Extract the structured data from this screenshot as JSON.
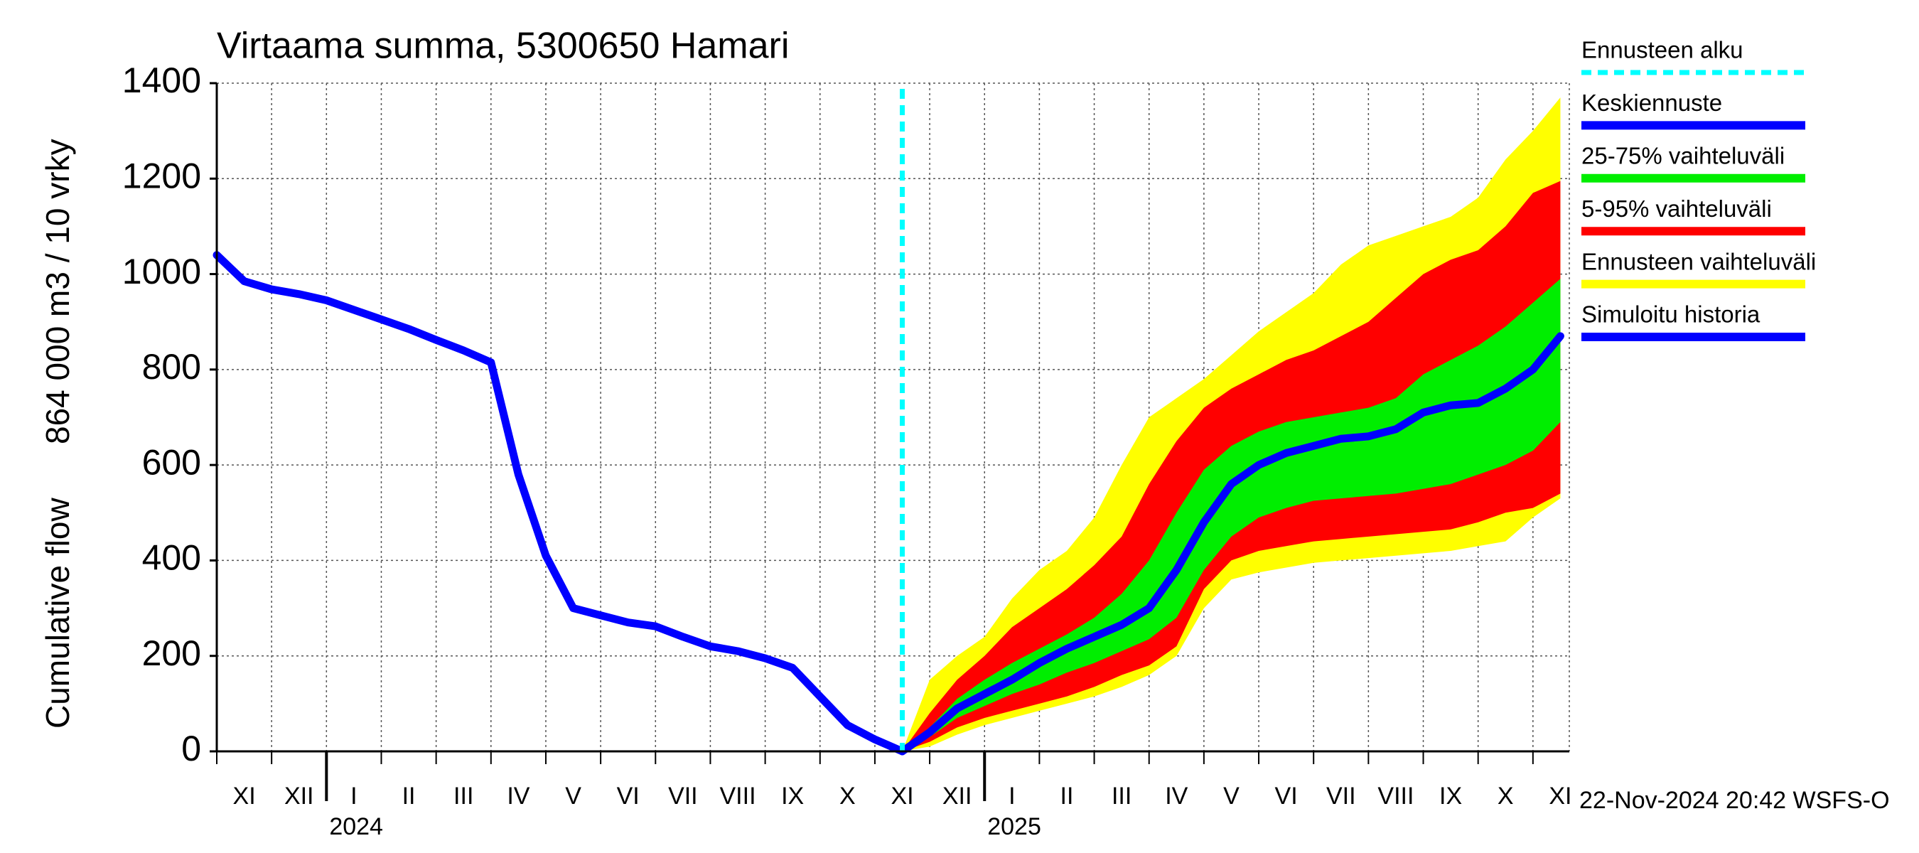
{
  "chart_data": {
    "type": "forecast",
    "title": "Virtaama summa, 5300650 Hamari",
    "ylabel": [
      "Cumulative flow",
      "864 000 m3 / 10 vrky"
    ],
    "footer": "22-Nov-2024 20:42 WSFS-O",
    "years": [
      "2024",
      "2025"
    ],
    "categories": [
      null,
      "XI",
      null,
      "XII",
      null,
      "I",
      null,
      "II",
      null,
      "III",
      null,
      "IV",
      null,
      "V",
      null,
      "VI",
      null,
      "VII",
      null,
      "VIII",
      null,
      "IX",
      null,
      "X",
      null,
      "XI",
      null,
      "XII",
      null,
      "I",
      null,
      "II",
      null,
      "III",
      null,
      "IV",
      null,
      "V",
      null,
      "VI",
      null,
      "VII",
      null,
      "VIII",
      null,
      "IX",
      null,
      "X",
      null,
      "XI"
    ],
    "ylim": [
      0,
      1400
    ],
    "yticks": [
      0,
      200,
      400,
      600,
      800,
      1000,
      1200,
      1400
    ],
    "grid": true,
    "forecast_start": {
      "name": "Ennusteen alku",
      "color": "#00ffff"
    },
    "series": [
      {
        "name": "Keskiennuste",
        "color": "#0000ff",
        "values": [
          null,
          null,
          null,
          null,
          null,
          null,
          null,
          null,
          null,
          null,
          null,
          null,
          null,
          null,
          null,
          null,
          null,
          null,
          null,
          null,
          null,
          null,
          null,
          null,
          null,
          0,
          40,
          90,
          120,
          150,
          185,
          215,
          240,
          265,
          300,
          380,
          480,
          560,
          600,
          625,
          640,
          655,
          660,
          675,
          710,
          725,
          730,
          760,
          800,
          870
        ]
      },
      {
        "name": "25-75% vaihteluväli",
        "color": "#00ee00",
        "low": [
          null,
          null,
          null,
          null,
          null,
          null,
          null,
          null,
          null,
          null,
          null,
          null,
          null,
          null,
          null,
          null,
          null,
          null,
          null,
          null,
          null,
          null,
          null,
          null,
          null,
          0,
          30,
          70,
          95,
          120,
          140,
          165,
          185,
          210,
          235,
          280,
          380,
          450,
          490,
          510,
          525,
          530,
          535,
          540,
          550,
          560,
          580,
          600,
          630,
          690
        ],
        "high": [
          null,
          null,
          null,
          null,
          null,
          null,
          null,
          null,
          null,
          null,
          null,
          null,
          null,
          null,
          null,
          null,
          null,
          null,
          null,
          null,
          null,
          null,
          null,
          null,
          null,
          0,
          50,
          110,
          150,
          185,
          215,
          245,
          280,
          330,
          400,
          500,
          590,
          640,
          670,
          690,
          700,
          710,
          720,
          740,
          790,
          820,
          850,
          890,
          940,
          990
        ]
      },
      {
        "name": "5-95% vaihteluväli",
        "color": "#ff0000",
        "low": [
          null,
          null,
          null,
          null,
          null,
          null,
          null,
          null,
          null,
          null,
          null,
          null,
          null,
          null,
          null,
          null,
          null,
          null,
          null,
          null,
          null,
          null,
          null,
          null,
          null,
          0,
          20,
          50,
          70,
          85,
          100,
          115,
          135,
          160,
          180,
          220,
          340,
          400,
          420,
          430,
          440,
          445,
          450,
          455,
          460,
          465,
          480,
          500,
          510,
          540
        ],
        "high": [
          null,
          null,
          null,
          null,
          null,
          null,
          null,
          null,
          null,
          null,
          null,
          null,
          null,
          null,
          null,
          null,
          null,
          null,
          null,
          null,
          null,
          null,
          null,
          null,
          null,
          0,
          80,
          150,
          200,
          260,
          300,
          340,
          390,
          450,
          560,
          650,
          720,
          760,
          790,
          820,
          840,
          870,
          900,
          950,
          1000,
          1030,
          1050,
          1100,
          1170,
          1195
        ]
      },
      {
        "name": "Ennusteen vaihteluväli",
        "color": "#ffff00",
        "low": [
          null,
          null,
          null,
          null,
          null,
          null,
          null,
          null,
          null,
          null,
          null,
          null,
          null,
          null,
          null,
          null,
          null,
          null,
          null,
          null,
          null,
          null,
          null,
          null,
          null,
          0,
          10,
          35,
          55,
          70,
          85,
          100,
          115,
          135,
          160,
          200,
          300,
          360,
          375,
          385,
          395,
          400,
          405,
          410,
          415,
          420,
          430,
          440,
          490,
          530
        ],
        "high": [
          null,
          null,
          null,
          null,
          null,
          null,
          null,
          null,
          null,
          null,
          null,
          null,
          null,
          null,
          null,
          null,
          null,
          null,
          null,
          null,
          null,
          null,
          null,
          null,
          null,
          0,
          150,
          200,
          240,
          320,
          380,
          420,
          490,
          600,
          700,
          740,
          780,
          830,
          880,
          920,
          960,
          1020,
          1060,
          1080,
          1100,
          1120,
          1160,
          1240,
          1300,
          1370
        ]
      },
      {
        "name": "Simuloitu historia",
        "color": "#0000ff",
        "values": [
          1040,
          985,
          968,
          958,
          945,
          925,
          905,
          885,
          862,
          840,
          815,
          580,
          410,
          300,
          285,
          270,
          262,
          240,
          220,
          210,
          195,
          175,
          115,
          55,
          25,
          0,
          null,
          null,
          null,
          null,
          null,
          null,
          null,
          null,
          null,
          null,
          null,
          null,
          null,
          null,
          null,
          null,
          null,
          null,
          null,
          null,
          null,
          null,
          null,
          null
        ]
      }
    ]
  }
}
